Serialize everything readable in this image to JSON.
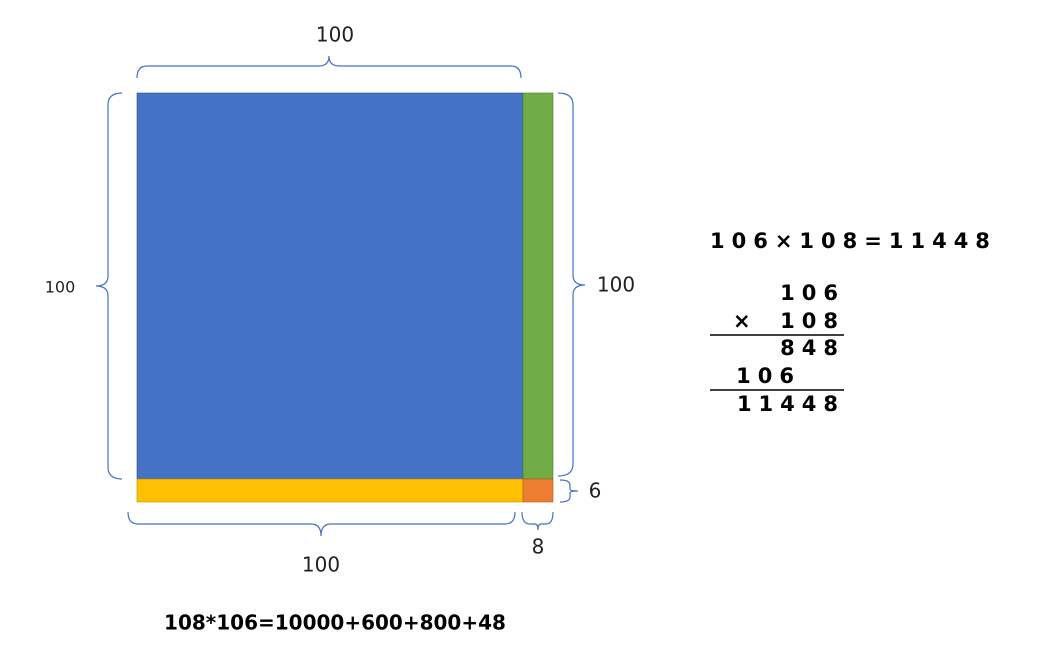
{
  "labels": {
    "top": "100",
    "left": "100",
    "right": "100",
    "right_small": "6",
    "bottom": "100",
    "bottom_small": "8"
  },
  "equation": "108*106=10000+600+800+48",
  "product": "106×108=11448",
  "multiplication": {
    "multiplicand": "106",
    "operator": "×",
    "multiplier": "108",
    "partial_1": "848",
    "partial_2": "106",
    "result": "11448"
  }
}
